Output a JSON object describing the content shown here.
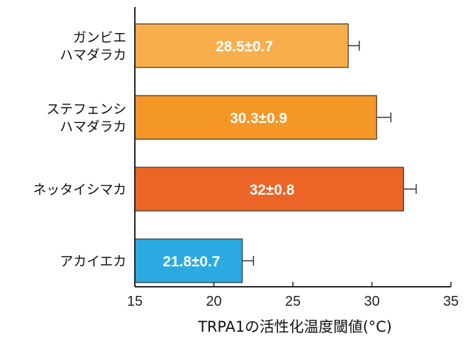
{
  "chart_data": {
    "type": "bar",
    "orientation": "horizontal",
    "categories": [
      [
        "ガンビエ",
        "ハマダラカ"
      ],
      [
        "ステフェンシ",
        "ハマダラカ"
      ],
      [
        "ネッタイシマカ"
      ],
      [
        "アカイエカ"
      ]
    ],
    "values": [
      28.5,
      30.3,
      32,
      21.8
    ],
    "errors": [
      0.7,
      0.9,
      0.8,
      0.7
    ],
    "data_labels": [
      "28.5±0.7",
      "30.3±0.9",
      "32±0.8",
      "21.8±0.7"
    ],
    "colors": [
      "#F9AE4C",
      "#F49727",
      "#EC6426",
      "#2BAAE1"
    ],
    "xlim": [
      15,
      35
    ],
    "xticks": [
      15,
      20,
      25,
      30,
      35
    ],
    "xlabel": "TRPA1の活性化温度閾値(°C)",
    "title": "",
    "grid": false,
    "legend": "none"
  }
}
